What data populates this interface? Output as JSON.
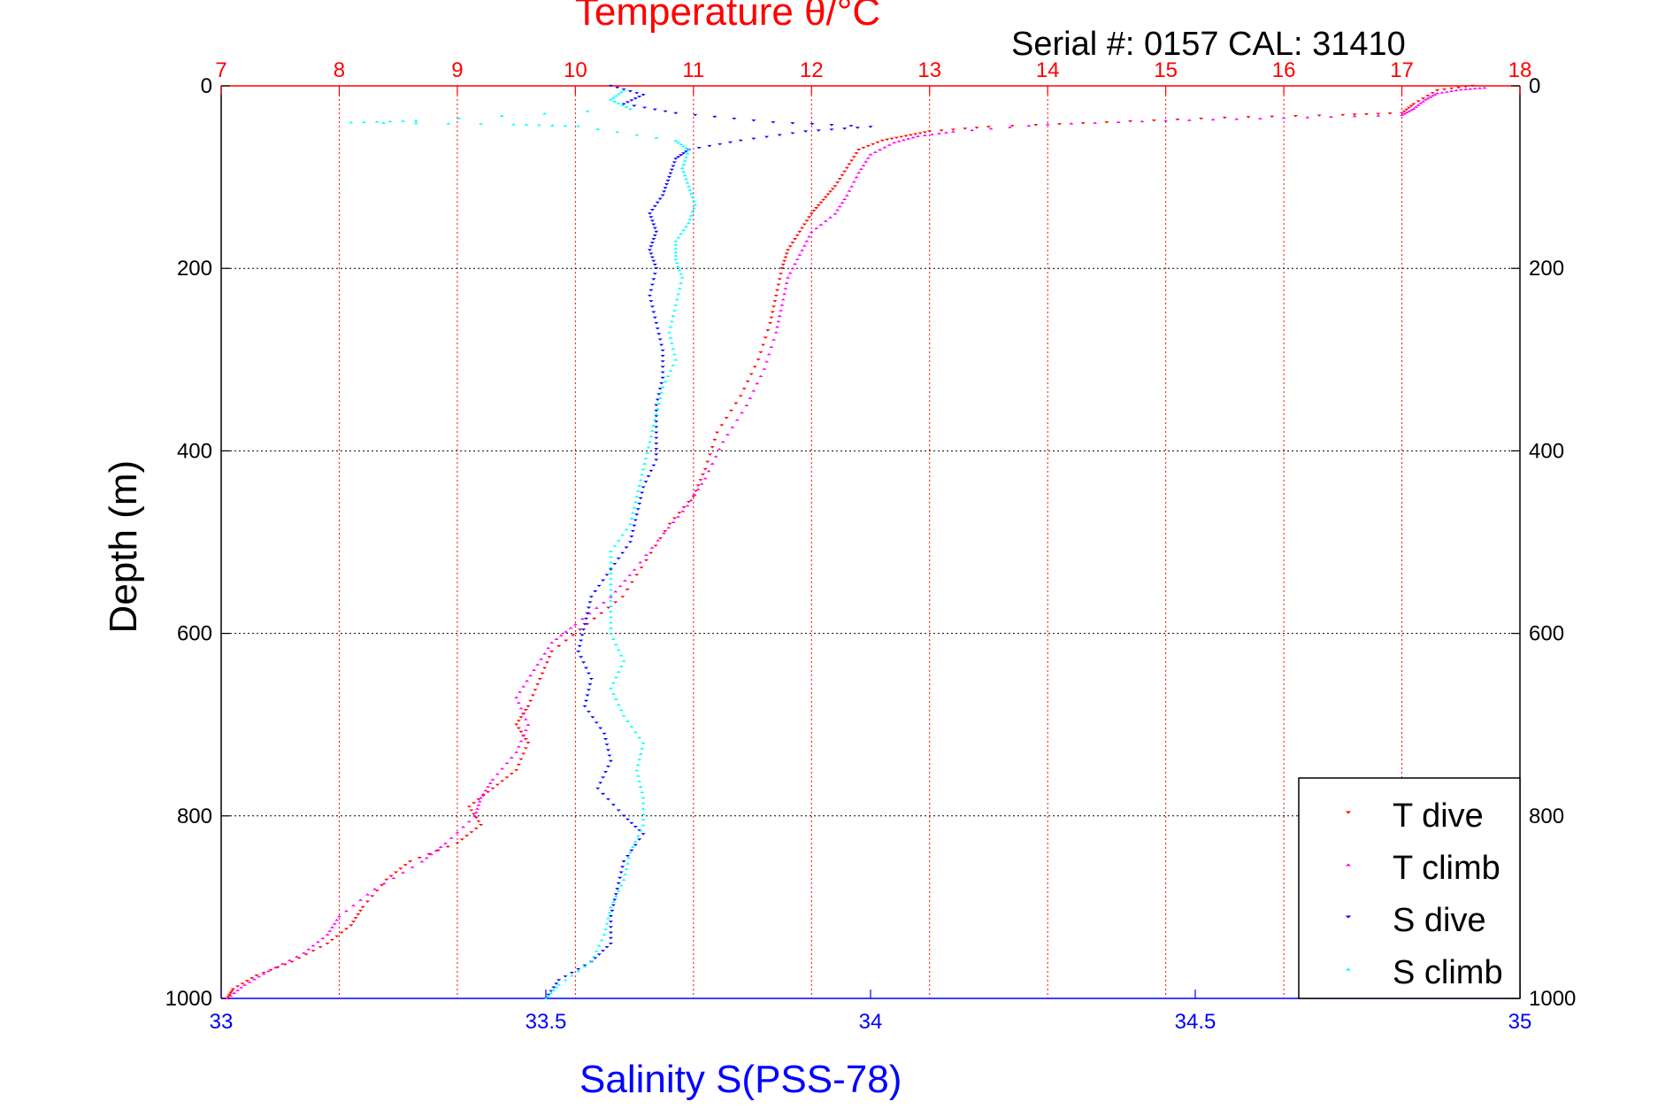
{
  "chart_data": {
    "type": "scatter",
    "title_top": "Temperature θ/°C",
    "xlabel_bottom": "Salinity S(PSS-78)",
    "ylabel": "Depth (m)",
    "annotation": "Serial #: 0157  CAL: 31410",
    "y_axis": {
      "range": [
        0,
        1000
      ],
      "reversed": true,
      "ticks": [
        0,
        200,
        400,
        600,
        800,
        1000
      ]
    },
    "x_top_axis": {
      "quantity": "Temperature",
      "range": [
        7,
        18
      ],
      "ticks": [
        7,
        8,
        9,
        10,
        11,
        12,
        13,
        14,
        15,
        16,
        17,
        18
      ],
      "color": "#ff0000"
    },
    "x_bottom_axis": {
      "quantity": "Salinity",
      "range": [
        33,
        35
      ],
      "ticks": [
        "33",
        "33.5",
        "34",
        "34.5",
        "35"
      ],
      "color": "#0000ff"
    },
    "grid": {
      "vertical": "top-axis ticks, red dotted",
      "horizontal": "black dotted"
    },
    "legend_position": "bottom-right",
    "series": [
      {
        "name": "T dive",
        "axis": "temperature",
        "color": "#ff0000",
        "marker": "triangle-down",
        "points": [
          [
            17.6,
            0
          ],
          [
            17.3,
            5
          ],
          [
            17.1,
            20
          ],
          [
            17.0,
            30
          ],
          [
            16.5,
            32
          ],
          [
            15.5,
            35
          ],
          [
            14.5,
            40
          ],
          [
            13.5,
            45
          ],
          [
            13.0,
            50
          ],
          [
            12.8,
            55
          ],
          [
            12.6,
            60
          ],
          [
            12.4,
            70
          ],
          [
            12.3,
            90
          ],
          [
            12.2,
            110
          ],
          [
            12.1,
            125
          ],
          [
            12.0,
            140
          ],
          [
            11.9,
            160
          ],
          [
            11.8,
            180
          ],
          [
            11.75,
            200
          ],
          [
            11.7,
            230
          ],
          [
            11.65,
            260
          ],
          [
            11.55,
            300
          ],
          [
            11.4,
            340
          ],
          [
            11.2,
            380
          ],
          [
            11.1,
            420
          ],
          [
            11.0,
            450
          ],
          [
            10.8,
            480
          ],
          [
            10.6,
            520
          ],
          [
            10.4,
            560
          ],
          [
            10.1,
            590
          ],
          [
            9.8,
            620
          ],
          [
            9.7,
            650
          ],
          [
            9.6,
            680
          ],
          [
            9.5,
            700
          ],
          [
            9.6,
            720
          ],
          [
            9.5,
            750
          ],
          [
            9.3,
            770
          ],
          [
            9.1,
            790
          ],
          [
            9.2,
            810
          ],
          [
            9.0,
            830
          ],
          [
            8.6,
            850
          ],
          [
            8.4,
            870
          ],
          [
            8.2,
            900
          ],
          [
            8.1,
            920
          ],
          [
            7.9,
            940
          ],
          [
            7.6,
            960
          ],
          [
            7.3,
            975
          ],
          [
            7.1,
            990
          ],
          [
            7.05,
            1000
          ]
        ]
      },
      {
        "name": "T climb",
        "axis": "temperature",
        "color": "#ff00ff",
        "marker": "triangle-up",
        "points": [
          [
            17.7,
            2
          ],
          [
            17.5,
            4
          ],
          [
            17.3,
            8
          ],
          [
            17.2,
            15
          ],
          [
            17.1,
            25
          ],
          [
            17.0,
            32
          ],
          [
            16.0,
            35
          ],
          [
            15.0,
            38
          ],
          [
            14.0,
            42
          ],
          [
            13.2,
            50
          ],
          [
            12.9,
            55
          ],
          [
            12.7,
            62
          ],
          [
            12.5,
            75
          ],
          [
            12.4,
            95
          ],
          [
            12.3,
            120
          ],
          [
            12.2,
            140
          ],
          [
            12.0,
            160
          ],
          [
            11.9,
            185
          ],
          [
            11.8,
            210
          ],
          [
            11.75,
            240
          ],
          [
            11.7,
            270
          ],
          [
            11.6,
            310
          ],
          [
            11.45,
            350
          ],
          [
            11.25,
            390
          ],
          [
            11.1,
            430
          ],
          [
            10.95,
            460
          ],
          [
            10.75,
            490
          ],
          [
            10.5,
            530
          ],
          [
            10.3,
            560
          ],
          [
            10.0,
            590
          ],
          [
            9.8,
            610
          ],
          [
            9.65,
            640
          ],
          [
            9.5,
            670
          ],
          [
            9.6,
            700
          ],
          [
            9.5,
            730
          ],
          [
            9.3,
            760
          ],
          [
            9.2,
            780
          ],
          [
            9.15,
            800
          ],
          [
            8.9,
            830
          ],
          [
            8.7,
            850
          ],
          [
            8.3,
            880
          ],
          [
            8.0,
            910
          ],
          [
            7.9,
            930
          ],
          [
            7.7,
            950
          ],
          [
            7.4,
            970
          ],
          [
            7.2,
            985
          ],
          [
            7.05,
            1000
          ]
        ]
      },
      {
        "name": "S dive",
        "axis": "salinity",
        "color": "#0000ff",
        "marker": "triangle-down",
        "points": [
          [
            33.6,
            0
          ],
          [
            33.65,
            10
          ],
          [
            33.62,
            20
          ],
          [
            33.7,
            30
          ],
          [
            33.85,
            40
          ],
          [
            34.0,
            45
          ],
          [
            33.9,
            50
          ],
          [
            33.8,
            60
          ],
          [
            33.72,
            70
          ],
          [
            33.7,
            80
          ],
          [
            33.69,
            100
          ],
          [
            33.68,
            120
          ],
          [
            33.66,
            140
          ],
          [
            33.67,
            160
          ],
          [
            33.66,
            180
          ],
          [
            33.67,
            200
          ],
          [
            33.66,
            230
          ],
          [
            33.67,
            260
          ],
          [
            33.68,
            290
          ],
          [
            33.68,
            320
          ],
          [
            33.67,
            350
          ],
          [
            33.67,
            380
          ],
          [
            33.67,
            410
          ],
          [
            33.65,
            440
          ],
          [
            33.64,
            470
          ],
          [
            33.63,
            500
          ],
          [
            33.6,
            530
          ],
          [
            33.57,
            560
          ],
          [
            33.56,
            590
          ],
          [
            33.55,
            620
          ],
          [
            33.57,
            650
          ],
          [
            33.56,
            680
          ],
          [
            33.59,
            710
          ],
          [
            33.6,
            740
          ],
          [
            33.58,
            770
          ],
          [
            33.62,
            800
          ],
          [
            33.65,
            820
          ],
          [
            33.62,
            850
          ],
          [
            33.61,
            880
          ],
          [
            33.6,
            910
          ],
          [
            33.6,
            940
          ],
          [
            33.57,
            960
          ],
          [
            33.52,
            980
          ],
          [
            33.5,
            1000
          ]
        ]
      },
      {
        "name": "S climb",
        "axis": "salinity",
        "color": "#00ffff",
        "marker": "triangle-up",
        "points": [
          [
            33.62,
            5
          ],
          [
            33.6,
            15
          ],
          [
            33.63,
            25
          ],
          [
            33.3,
            38
          ],
          [
            33.2,
            40
          ],
          [
            33.45,
            42
          ],
          [
            33.55,
            44
          ],
          [
            33.7,
            60
          ],
          [
            33.72,
            70
          ],
          [
            33.71,
            90
          ],
          [
            33.72,
            110
          ],
          [
            33.73,
            130
          ],
          [
            33.72,
            150
          ],
          [
            33.7,
            170
          ],
          [
            33.7,
            190
          ],
          [
            33.71,
            210
          ],
          [
            33.7,
            240
          ],
          [
            33.69,
            270
          ],
          [
            33.7,
            300
          ],
          [
            33.68,
            330
          ],
          [
            33.67,
            360
          ],
          [
            33.66,
            390
          ],
          [
            33.65,
            420
          ],
          [
            33.64,
            450
          ],
          [
            33.63,
            480
          ],
          [
            33.6,
            510
          ],
          [
            33.6,
            540
          ],
          [
            33.6,
            570
          ],
          [
            33.6,
            600
          ],
          [
            33.62,
            630
          ],
          [
            33.6,
            660
          ],
          [
            33.62,
            690
          ],
          [
            33.65,
            720
          ],
          [
            33.64,
            750
          ],
          [
            33.65,
            780
          ],
          [
            33.65,
            810
          ],
          [
            33.63,
            840
          ],
          [
            33.62,
            870
          ],
          [
            33.6,
            900
          ],
          [
            33.59,
            930
          ],
          [
            33.57,
            960
          ],
          [
            33.52,
            985
          ],
          [
            33.5,
            1000
          ]
        ]
      }
    ]
  }
}
